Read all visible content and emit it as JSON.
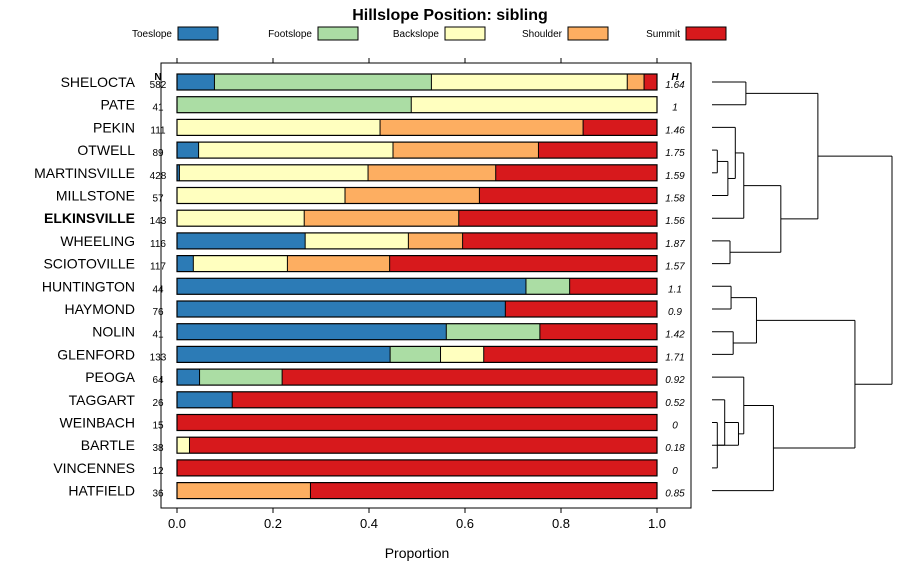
{
  "chart_data": {
    "type": "bar",
    "stacked": true,
    "orientation": "horizontal",
    "title": "Hillslope Position: sibling",
    "xlabel": "Proportion",
    "ylabel": "",
    "xlim": [
      0,
      1
    ],
    "x_ticks": [
      "0.0",
      "0.2",
      "0.4",
      "0.6",
      "0.8",
      "1.0"
    ],
    "x_tick_values": [
      0,
      0.2,
      0.4,
      0.6,
      0.8,
      1.0
    ],
    "n_header": "N",
    "h_header": "H",
    "legend_position": "top",
    "series": [
      {
        "name": "Toeslope",
        "color": "#2c7bb6"
      },
      {
        "name": "Footslope",
        "color": "#abdda4"
      },
      {
        "name": "Backslope",
        "color": "#ffffbf"
      },
      {
        "name": "Shoulder",
        "color": "#fdae61"
      },
      {
        "name": "Summit",
        "color": "#d7191c"
      }
    ],
    "categories": [
      {
        "name": "SHELOCTA",
        "n": "582",
        "h": "1.64",
        "bold": false,
        "values": [
          0.078,
          0.452,
          0.408,
          0.035,
          0.027
        ]
      },
      {
        "name": "PATE",
        "n": "41",
        "h": "1",
        "bold": false,
        "values": [
          0.0,
          0.488,
          0.512,
          0.0,
          0.0
        ]
      },
      {
        "name": "PEKIN",
        "n": "111",
        "h": "1.46",
        "bold": false,
        "values": [
          0.0,
          0.0,
          0.423,
          0.423,
          0.154
        ]
      },
      {
        "name": "OTWELL",
        "n": "89",
        "h": "1.75",
        "bold": false,
        "values": [
          0.045,
          0.0,
          0.405,
          0.303,
          0.247
        ]
      },
      {
        "name": "MARTINSVILLE",
        "n": "428",
        "h": "1.59",
        "bold": false,
        "values": [
          0.005,
          0.0,
          0.393,
          0.266,
          0.336
        ]
      },
      {
        "name": "MILLSTONE",
        "n": "57",
        "h": "1.58",
        "bold": false,
        "values": [
          0.0,
          0.0,
          0.35,
          0.28,
          0.37
        ]
      },
      {
        "name": "ELKINSVILLE",
        "n": "143",
        "h": "1.56",
        "bold": true,
        "values": [
          0.0,
          0.0,
          0.265,
          0.322,
          0.413
        ]
      },
      {
        "name": "WHEELING",
        "n": "116",
        "h": "1.87",
        "bold": false,
        "values": [
          0.267,
          0.0,
          0.215,
          0.113,
          0.405
        ]
      },
      {
        "name": "SCIOTOVILLE",
        "n": "117",
        "h": "1.57",
        "bold": false,
        "values": [
          0.034,
          0.0,
          0.196,
          0.213,
          0.557
        ]
      },
      {
        "name": "HUNTINGTON",
        "n": "44",
        "h": "1.1",
        "bold": false,
        "values": [
          0.727,
          0.091,
          0.0,
          0.0,
          0.182
        ]
      },
      {
        "name": "HAYMOND",
        "n": "76",
        "h": "0.9",
        "bold": false,
        "values": [
          0.684,
          0.0,
          0.0,
          0.0,
          0.316
        ]
      },
      {
        "name": "NOLIN",
        "n": "41",
        "h": "1.42",
        "bold": false,
        "values": [
          0.561,
          0.195,
          0.0,
          0.0,
          0.244
        ]
      },
      {
        "name": "GLENFORD",
        "n": "133",
        "h": "1.71",
        "bold": false,
        "values": [
          0.444,
          0.105,
          0.09,
          0.0,
          0.361
        ]
      },
      {
        "name": "PEOGA",
        "n": "64",
        "h": "0.92",
        "bold": false,
        "values": [
          0.047,
          0.172,
          0.0,
          0.0,
          0.781
        ]
      },
      {
        "name": "TAGGART",
        "n": "26",
        "h": "0.52",
        "bold": false,
        "values": [
          0.115,
          0.0,
          0.0,
          0.0,
          0.885
        ]
      },
      {
        "name": "WEINBACH",
        "n": "15",
        "h": "0",
        "bold": false,
        "values": [
          0.0,
          0.0,
          0.0,
          0.0,
          1.0
        ]
      },
      {
        "name": "BARTLE",
        "n": "38",
        "h": "0.18",
        "bold": false,
        "values": [
          0.0,
          0.0,
          0.026,
          0.0,
          0.974
        ]
      },
      {
        "name": "VINCENNES",
        "n": "12",
        "h": "0",
        "bold": false,
        "values": [
          0.0,
          0.0,
          0.0,
          0.0,
          1.0
        ]
      },
      {
        "name": "HATFIELD",
        "n": "36",
        "h": "0.85",
        "bold": false,
        "values": [
          0.0,
          0.0,
          0.0,
          0.278,
          0.722
        ]
      }
    ],
    "dendrogram": {
      "leaf_order": [
        "SHELOCTA",
        "PATE",
        "PEKIN",
        "OTWELL",
        "MARTINSVILLE",
        "MILLSTONE",
        "ELKINSVILLE",
        "WHEELING",
        "SCIOTOVILLE",
        "HUNTINGTON",
        "HAYMOND",
        "NOLIN",
        "GLENFORD",
        "PEOGA",
        "TAGGART",
        "WEINBACH",
        "BARTLE",
        "VINCENNES",
        "HATFIELD"
      ],
      "merges": [
        {
          "left": "leaf:3",
          "right": "leaf:4",
          "height": 0.05
        },
        {
          "left": "leaf:15",
          "right": "leaf:17",
          "height": 0.05
        },
        {
          "left": "leaf:14",
          "right": "merge:1",
          "height": 0.12
        },
        {
          "left": "merge:0",
          "right": "leaf:5",
          "height": 0.15
        },
        {
          "left": "leaf:7",
          "right": "leaf:8",
          "height": 0.17
        },
        {
          "left": "leaf:9",
          "right": "leaf:10",
          "height": 0.18
        },
        {
          "left": "leaf:11",
          "right": "leaf:12",
          "height": 0.2
        },
        {
          "left": "leaf:2",
          "right": "merge:3",
          "height": 0.22
        },
        {
          "left": "merge:2",
          "right": "leaf:16",
          "height": 0.25
        },
        {
          "left": "leaf:13",
          "right": "merge:8",
          "height": 0.3
        },
        {
          "left": "merge:7",
          "right": "leaf:6",
          "height": 0.3
        },
        {
          "left": "leaf:0",
          "right": "leaf:1",
          "height": 0.32
        },
        {
          "left": "merge:5",
          "right": "merge:6",
          "height": 0.42
        },
        {
          "left": "merge:9",
          "right": "leaf:18",
          "height": 0.58
        },
        {
          "left": "merge:10",
          "right": "merge:4",
          "height": 0.65
        },
        {
          "left": "merge:11",
          "right": "merge:14",
          "height": 1.0
        },
        {
          "left": "merge:12",
          "right": "merge:13",
          "height": 1.35
        },
        {
          "left": "merge:15",
          "right": "merge:16",
          "height": 1.7
        }
      ]
    }
  }
}
